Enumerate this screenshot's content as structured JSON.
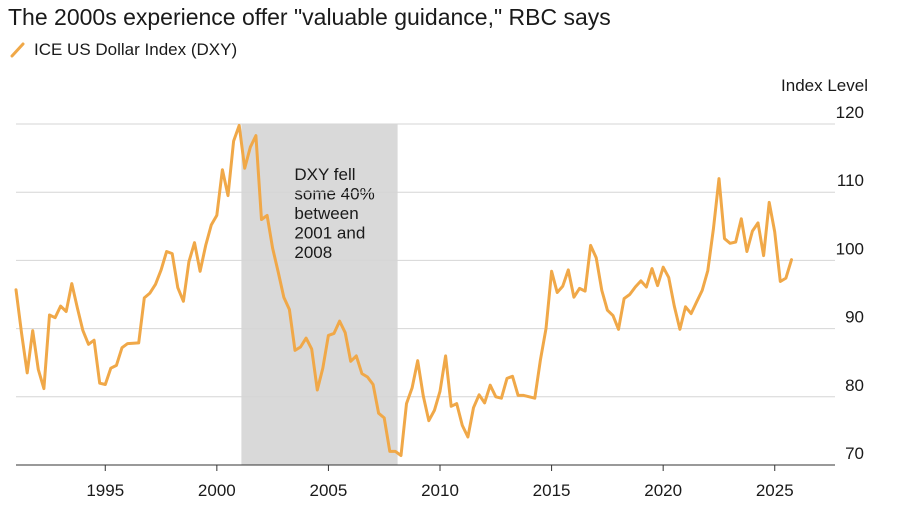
{
  "chart_data": {
    "type": "line",
    "title": "The 2000s experience offer \"valuable guidance,\" RBC says",
    "xlabel": "",
    "ylabel": "Index Level",
    "xlim": [
      1991,
      2027.7
    ],
    "ylim": [
      70,
      120
    ],
    "x_ticks": [
      1995,
      2000,
      2005,
      2010,
      2015,
      2020,
      2025
    ],
    "x_tick_labels": [
      "1995",
      "2000",
      "2005",
      "2010",
      "2015",
      "2020",
      "2025"
    ],
    "y_ticks": [
      70,
      80,
      90,
      100,
      110,
      120
    ],
    "y_tick_labels": [
      "70",
      "80",
      "90",
      "100",
      "110",
      "120"
    ],
    "gridlines": true,
    "legend_position": "top-left",
    "series": [
      {
        "name": "ICE US Dollar Index (DXY)",
        "color": "#f0a848",
        "points": [
          [
            1991.0,
            95.7
          ],
          [
            1991.25,
            89.3
          ],
          [
            1991.5,
            83.5
          ],
          [
            1991.75,
            89.7
          ],
          [
            1992.0,
            84.0
          ],
          [
            1992.25,
            81.2
          ],
          [
            1992.5,
            92.0
          ],
          [
            1992.75,
            91.6
          ],
          [
            1993.0,
            93.3
          ],
          [
            1993.25,
            92.5
          ],
          [
            1993.5,
            96.6
          ],
          [
            1993.75,
            93.0
          ],
          [
            1994.0,
            89.7
          ],
          [
            1994.25,
            87.7
          ],
          [
            1994.5,
            88.3
          ],
          [
            1994.75,
            82.0
          ],
          [
            1995.0,
            81.8
          ],
          [
            1995.25,
            84.2
          ],
          [
            1995.5,
            84.6
          ],
          [
            1995.75,
            87.2
          ],
          [
            1996.0,
            87.8
          ],
          [
            1996.5,
            87.9
          ],
          [
            1996.75,
            94.5
          ],
          [
            1997.0,
            95.2
          ],
          [
            1997.25,
            96.5
          ],
          [
            1997.5,
            98.6
          ],
          [
            1997.75,
            101.3
          ],
          [
            1998.0,
            101.0
          ],
          [
            1998.25,
            96.0
          ],
          [
            1998.5,
            94.0
          ],
          [
            1998.75,
            99.8
          ],
          [
            1999.0,
            102.6
          ],
          [
            1999.25,
            98.4
          ],
          [
            1999.5,
            102.2
          ],
          [
            1999.75,
            105.2
          ],
          [
            2000.0,
            106.6
          ],
          [
            2000.25,
            113.3
          ],
          [
            2000.5,
            109.5
          ],
          [
            2000.75,
            117.5
          ],
          [
            2001.0,
            119.8
          ],
          [
            2001.25,
            113.5
          ],
          [
            2001.5,
            116.6
          ],
          [
            2001.75,
            118.3
          ],
          [
            2002.0,
            106.0
          ],
          [
            2002.25,
            106.6
          ],
          [
            2002.5,
            101.8
          ],
          [
            2002.75,
            98.3
          ],
          [
            2003.0,
            94.6
          ],
          [
            2003.25,
            92.8
          ],
          [
            2003.5,
            86.8
          ],
          [
            2003.75,
            87.3
          ],
          [
            2004.0,
            88.6
          ],
          [
            2004.25,
            87.0
          ],
          [
            2004.5,
            81.0
          ],
          [
            2004.75,
            84.2
          ],
          [
            2005.0,
            89.0
          ],
          [
            2005.25,
            89.3
          ],
          [
            2005.5,
            91.1
          ],
          [
            2005.75,
            89.4
          ],
          [
            2006.0,
            85.2
          ],
          [
            2006.25,
            86.0
          ],
          [
            2006.5,
            83.4
          ],
          [
            2006.75,
            82.9
          ],
          [
            2007.0,
            81.8
          ],
          [
            2007.25,
            77.6
          ],
          [
            2007.5,
            76.9
          ],
          [
            2007.75,
            72.0
          ],
          [
            2008.0,
            72.0
          ],
          [
            2008.25,
            71.4
          ],
          [
            2008.5,
            79.0
          ],
          [
            2008.75,
            81.3
          ],
          [
            2009.0,
            85.3
          ],
          [
            2009.25,
            80.1
          ],
          [
            2009.5,
            76.5
          ],
          [
            2009.75,
            78.0
          ],
          [
            2010.0,
            80.8
          ],
          [
            2010.25,
            86.0
          ],
          [
            2010.5,
            78.6
          ],
          [
            2010.75,
            79.0
          ],
          [
            2011.0,
            75.8
          ],
          [
            2011.25,
            74.1
          ],
          [
            2011.5,
            78.4
          ],
          [
            2011.75,
            80.3
          ],
          [
            2012.0,
            79.1
          ],
          [
            2012.25,
            81.7
          ],
          [
            2012.5,
            80.0
          ],
          [
            2012.75,
            79.8
          ],
          [
            2013.0,
            82.7
          ],
          [
            2013.25,
            83.0
          ],
          [
            2013.5,
            80.2
          ],
          [
            2013.75,
            80.2
          ],
          [
            2014.0,
            80.0
          ],
          [
            2014.25,
            79.8
          ],
          [
            2014.5,
            85.4
          ],
          [
            2014.75,
            90.0
          ],
          [
            2015.0,
            98.4
          ],
          [
            2015.25,
            95.3
          ],
          [
            2015.5,
            96.2
          ],
          [
            2015.75,
            98.6
          ],
          [
            2016.0,
            94.6
          ],
          [
            2016.25,
            95.9
          ],
          [
            2016.5,
            95.5
          ],
          [
            2016.75,
            102.2
          ],
          [
            2017.0,
            100.4
          ],
          [
            2017.25,
            95.6
          ],
          [
            2017.5,
            92.7
          ],
          [
            2017.75,
            91.9
          ],
          [
            2018.0,
            89.9
          ],
          [
            2018.25,
            94.4
          ],
          [
            2018.5,
            95.0
          ],
          [
            2018.75,
            96.1
          ],
          [
            2019.0,
            97.0
          ],
          [
            2019.25,
            96.1
          ],
          [
            2019.5,
            98.8
          ],
          [
            2019.75,
            96.3
          ],
          [
            2020.0,
            99.0
          ],
          [
            2020.25,
            97.5
          ],
          [
            2020.5,
            93.3
          ],
          [
            2020.75,
            89.9
          ],
          [
            2021.0,
            93.2
          ],
          [
            2021.25,
            92.2
          ],
          [
            2021.5,
            93.9
          ],
          [
            2021.75,
            95.6
          ],
          [
            2022.0,
            98.5
          ],
          [
            2022.25,
            104.6
          ],
          [
            2022.5,
            112.0
          ],
          [
            2022.75,
            103.2
          ],
          [
            2023.0,
            102.5
          ],
          [
            2023.25,
            102.7
          ],
          [
            2023.5,
            106.1
          ],
          [
            2023.75,
            101.3
          ],
          [
            2024.0,
            104.3
          ],
          [
            2024.25,
            105.5
          ],
          [
            2024.5,
            100.7
          ],
          [
            2024.75,
            108.5
          ],
          [
            2025.0,
            104.2
          ],
          [
            2025.25,
            96.9
          ],
          [
            2025.5,
            97.4
          ],
          [
            2025.75,
            100.1
          ]
        ]
      }
    ],
    "shaded_regions": [
      {
        "x_start": 2001.1,
        "x_end": 2008.1,
        "label_lines": [
          "DXY fell",
          "some 40%",
          "between",
          "2001 and",
          "2008"
        ]
      }
    ],
    "colors": {
      "line": "#f0a848",
      "shade": "#d9d9d9",
      "grid": "#d6d6d6",
      "axis": "#333333"
    }
  }
}
